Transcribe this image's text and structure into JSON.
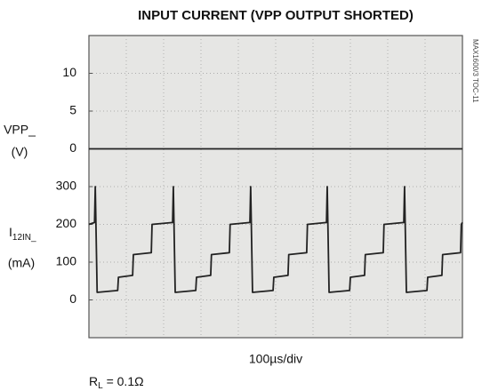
{
  "chart_data": {
    "type": "line",
    "title": "INPUT CURRENT (VPP OUTPUT SHORTED)",
    "xlabel": "100µs/div",
    "ylabel": [
      "VPP_",
      "(V)"
    ],
    "y2label": {
      "main": "I",
      "sub": "12IN_",
      "unit": "(mA)"
    },
    "note": "MAX1600/3 TOC-11",
    "condition": {
      "main": "R",
      "sub": "L",
      "rest": " = 0.1Ω"
    },
    "xlim": [
      0,
      1000
    ],
    "ylim": [
      -25,
      15
    ],
    "yticks": [
      0,
      5,
      10
    ],
    "y2lim": [
      -100,
      700
    ],
    "y2ticks": [
      0,
      100,
      200,
      300
    ],
    "grid": true,
    "series": [
      {
        "name": "VPP",
        "color": "#222222",
        "x": [
          0,
          1000
        ],
        "values": [
          0,
          0
        ]
      },
      {
        "name": "I12IN",
        "color": "#222222",
        "axis": "y2",
        "x": [
          0,
          15,
          17,
          22,
          77,
          79,
          117,
          119,
          167,
          169,
          224,
          226,
          231,
          286,
          288,
          326,
          328,
          376,
          378,
          431,
          433,
          438,
          493,
          495,
          533,
          535,
          583,
          585,
          636,
          638,
          643,
          698,
          700,
          738,
          740,
          788,
          790,
          843,
          845,
          850,
          905,
          907,
          945,
          947,
          995,
          997,
          1000
        ],
        "values": [
          200,
          205,
          300,
          20,
          25,
          60,
          65,
          120,
          125,
          200,
          205,
          300,
          20,
          25,
          60,
          65,
          120,
          125,
          200,
          205,
          300,
          20,
          25,
          60,
          65,
          120,
          125,
          200,
          205,
          300,
          20,
          25,
          60,
          65,
          120,
          125,
          200,
          205,
          300,
          20,
          25,
          60,
          65,
          120,
          125,
          200,
          205
        ]
      }
    ]
  }
}
